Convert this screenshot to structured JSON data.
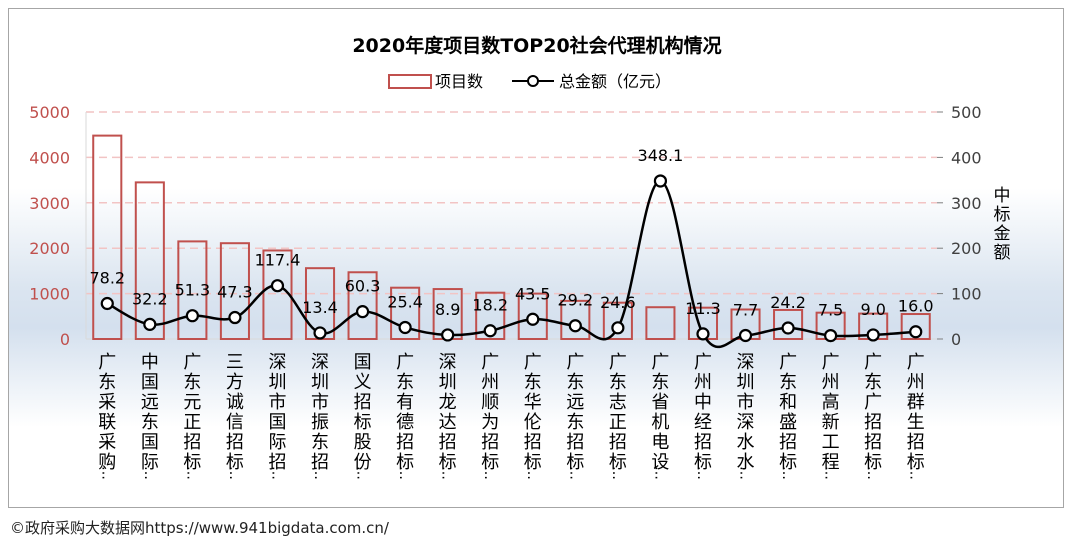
{
  "chart_data": {
    "type": "bar+line",
    "title": "2020年度项目数TOP20社会代理机构情况",
    "categories": [
      "广东采联采购…",
      "中国远东国际…",
      "广东元正招标…",
      "三方诚信招标…",
      "深圳市国际招…",
      "深圳市振东招…",
      "国义招标股份…",
      "广东有德招标…",
      "深圳龙达招标…",
      "广州顺为招标…",
      "广东华伦招标…",
      "广东远东招标…",
      "广东志正招标…",
      "广东省机电设…",
      "广州中经招标…",
      "深圳市深水水…",
      "广东和盛招标…",
      "广州高新工程…",
      "广东广招招标…",
      "广州群生招标…"
    ],
    "series": [
      {
        "name": "项目数",
        "type": "bar",
        "axis": "left",
        "color": "#c0504d",
        "values": [
          4480,
          3450,
          2150,
          2110,
          1950,
          1560,
          1470,
          1130,
          1100,
          1020,
          1000,
          840,
          800,
          700,
          690,
          650,
          640,
          580,
          560,
          550
        ]
      },
      {
        "name": "总金额（亿元）",
        "type": "line",
        "axis": "right",
        "color": "#000000",
        "values": [
          78.2,
          32.2,
          51.3,
          47.3,
          117.4,
          13.4,
          60.3,
          25.4,
          8.9,
          18.2,
          43.5,
          29.2,
          24.6,
          348.1,
          11.3,
          7.7,
          24.2,
          7.5,
          9.0,
          16.0
        ],
        "labels": [
          "78.2",
          "32.2",
          "51.3",
          "47.3",
          "117.4",
          "13.4",
          "60.3",
          "25.4",
          "8.9",
          "18.2",
          "43.5",
          "29.2",
          "24.6",
          "348.1",
          "11.3",
          "7.7",
          "24.2",
          "7.5",
          "9.0",
          "16.0"
        ]
      }
    ],
    "left_axis": {
      "min": 0,
      "max": 5000,
      "ticks": [
        "0",
        "1000",
        "2000",
        "3000",
        "4000",
        "5000"
      ],
      "color": "#c0504d"
    },
    "right_axis": {
      "min": 0,
      "max": 500,
      "ticks": [
        "0",
        "100",
        "200",
        "300",
        "400",
        "500"
      ],
      "label": "中标金额"
    },
    "legend": {
      "position": "top-center",
      "bar_label": "项目数",
      "line_label": "总金额（亿元）"
    },
    "grid": "dashed horizontal"
  },
  "footer": {
    "text": "©政府采购大数据网https://www.941bigdata.com.cn/"
  }
}
